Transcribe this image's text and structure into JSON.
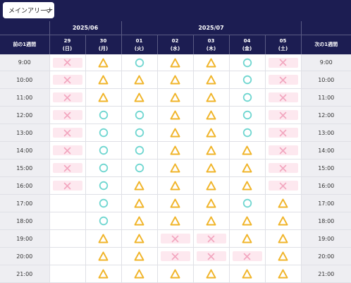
{
  "venue_select": {
    "value": "メインアリーナ"
  },
  "header": {
    "months": [
      "2025/06",
      "2025/07"
    ],
    "prev_week": "前の1週間",
    "next_week": "次の1週間",
    "days": [
      {
        "date": "29",
        "dow": "(日)"
      },
      {
        "date": "30",
        "dow": "(月)"
      },
      {
        "date": "01",
        "dow": "(火)"
      },
      {
        "date": "02",
        "dow": "(水)"
      },
      {
        "date": "03",
        "dow": "(木)"
      },
      {
        "date": "04",
        "dow": "(金)"
      },
      {
        "date": "05",
        "dow": "(土)"
      }
    ]
  },
  "colors": {
    "header_bg": "#1c1d52",
    "circle": "#6fd6d0",
    "triangle": "#f0b429",
    "cross": "#f2a6bf",
    "cross_bg": "#fde8ef"
  },
  "legend_icons": {
    "o": "available-circle-icon",
    "t": "few-left-triangle-icon",
    "x": "full-cross-icon"
  },
  "rows": [
    {
      "time": "9:00",
      "slots": [
        "x",
        "t",
        "o",
        "t",
        "t",
        "o",
        "x"
      ]
    },
    {
      "time": "10:00",
      "slots": [
        "x",
        "t",
        "t",
        "t",
        "t",
        "o",
        "x"
      ]
    },
    {
      "time": "11:00",
      "slots": [
        "x",
        "t",
        "t",
        "t",
        "t",
        "o",
        "x"
      ]
    },
    {
      "time": "12:00",
      "slots": [
        "x",
        "o",
        "o",
        "t",
        "t",
        "o",
        "x"
      ]
    },
    {
      "time": "13:00",
      "slots": [
        "x",
        "o",
        "o",
        "t",
        "t",
        "o",
        "x"
      ]
    },
    {
      "time": "14:00",
      "slots": [
        "x",
        "o",
        "o",
        "t",
        "t",
        "t",
        "x"
      ]
    },
    {
      "time": "15:00",
      "slots": [
        "x",
        "o",
        "o",
        "t",
        "t",
        "t",
        "x"
      ]
    },
    {
      "time": "16:00",
      "slots": [
        "x",
        "o",
        "t",
        "t",
        "t",
        "t",
        "x"
      ]
    },
    {
      "time": "17:00",
      "slots": [
        "",
        "o",
        "t",
        "t",
        "t",
        "o",
        "t"
      ]
    },
    {
      "time": "18:00",
      "slots": [
        "",
        "o",
        "t",
        "t",
        "t",
        "t",
        "t"
      ]
    },
    {
      "time": "19:00",
      "slots": [
        "",
        "t",
        "t",
        "x",
        "x",
        "t",
        "t"
      ]
    },
    {
      "time": "20:00",
      "slots": [
        "",
        "t",
        "t",
        "x",
        "x",
        "x",
        "t"
      ]
    },
    {
      "time": "21:00",
      "slots": [
        "",
        "t",
        "t",
        "t",
        "t",
        "t",
        "t"
      ]
    }
  ]
}
